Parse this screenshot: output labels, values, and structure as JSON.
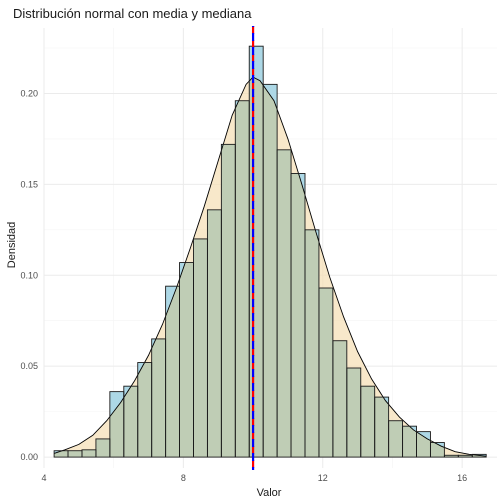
{
  "chart_data": {
    "type": "bar",
    "subtype": "histogram-with-density",
    "title": "Distribución normal con media y mediana",
    "xlabel": "Valor",
    "ylabel": "Densidad",
    "xlim": [
      4.0,
      17.0
    ],
    "ylim": [
      -0.006,
      0.236
    ],
    "x_ticks": [
      4,
      8,
      12,
      16
    ],
    "y_ticks": [
      0.0,
      0.05,
      0.1,
      0.15,
      0.2
    ],
    "y_tick_labels": [
      "0.00",
      "0.05",
      "0.10",
      "0.15",
      "0.20"
    ],
    "grid": true,
    "bin_width": 0.4,
    "bins": [
      {
        "x0": 4.29,
        "x1": 4.69,
        "density": 0.0035
      },
      {
        "x0": 4.69,
        "x1": 5.09,
        "density": 0.0035
      },
      {
        "x0": 5.09,
        "x1": 5.49,
        "density": 0.004
      },
      {
        "x0": 5.49,
        "x1": 5.89,
        "density": 0.01
      },
      {
        "x0": 5.89,
        "x1": 6.29,
        "density": 0.036
      },
      {
        "x0": 6.29,
        "x1": 6.69,
        "density": 0.039
      },
      {
        "x0": 6.69,
        "x1": 7.09,
        "density": 0.052
      },
      {
        "x0": 7.09,
        "x1": 7.49,
        "density": 0.065
      },
      {
        "x0": 7.49,
        "x1": 7.89,
        "density": 0.094
      },
      {
        "x0": 7.89,
        "x1": 8.29,
        "density": 0.107
      },
      {
        "x0": 8.29,
        "x1": 8.69,
        "density": 0.12
      },
      {
        "x0": 8.69,
        "x1": 9.09,
        "density": 0.136
      },
      {
        "x0": 9.09,
        "x1": 9.49,
        "density": 0.172
      },
      {
        "x0": 9.49,
        "x1": 9.89,
        "density": 0.196
      },
      {
        "x0": 9.89,
        "x1": 10.29,
        "density": 0.226
      },
      {
        "x0": 10.29,
        "x1": 10.69,
        "density": 0.205
      },
      {
        "x0": 10.69,
        "x1": 11.09,
        "density": 0.169
      },
      {
        "x0": 11.09,
        "x1": 11.49,
        "density": 0.156
      },
      {
        "x0": 11.49,
        "x1": 11.89,
        "density": 0.125
      },
      {
        "x0": 11.89,
        "x1": 12.29,
        "density": 0.093
      },
      {
        "x0": 12.29,
        "x1": 12.69,
        "density": 0.064
      },
      {
        "x0": 12.69,
        "x1": 13.09,
        "density": 0.049
      },
      {
        "x0": 13.09,
        "x1": 13.49,
        "density": 0.039
      },
      {
        "x0": 13.49,
        "x1": 13.89,
        "density": 0.033
      },
      {
        "x0": 13.89,
        "x1": 14.29,
        "density": 0.02
      },
      {
        "x0": 14.29,
        "x1": 14.69,
        "density": 0.017
      },
      {
        "x0": 14.69,
        "x1": 15.09,
        "density": 0.014
      },
      {
        "x0": 15.09,
        "x1": 15.49,
        "density": 0.008
      },
      {
        "x0": 15.49,
        "x1": 15.89,
        "density": 0.001
      },
      {
        "x0": 15.89,
        "x1": 16.29,
        "density": 0.001
      },
      {
        "x0": 16.29,
        "x1": 16.69,
        "density": 0.0015
      }
    ],
    "density_curve": {
      "x": [
        4.29,
        4.6,
        5.0,
        5.4,
        5.8,
        6.2,
        6.6,
        7.0,
        7.4,
        7.8,
        8.2,
        8.6,
        9.0,
        9.4,
        9.8,
        10.0,
        10.2,
        10.6,
        11.0,
        11.4,
        11.8,
        12.2,
        12.6,
        13.0,
        13.4,
        13.8,
        14.2,
        14.6,
        15.0,
        15.4,
        15.8,
        16.2,
        16.69
      ],
      "y": [
        0.002,
        0.004,
        0.007,
        0.012,
        0.02,
        0.03,
        0.042,
        0.056,
        0.073,
        0.093,
        0.115,
        0.138,
        0.163,
        0.188,
        0.205,
        0.209,
        0.207,
        0.196,
        0.175,
        0.15,
        0.124,
        0.099,
        0.077,
        0.058,
        0.043,
        0.031,
        0.022,
        0.015,
        0.01,
        0.006,
        0.003,
        0.0015,
        0.0005
      ]
    },
    "mean": 10.0,
    "median": 10.0,
    "colors": {
      "bar_fill": "#add8e6",
      "bar_stroke": "#1a1a1a",
      "density_fill": "#f5deb3",
      "density_stroke": "#000000",
      "mean_line": "#ff0000",
      "median_line": "#0000ff"
    }
  }
}
